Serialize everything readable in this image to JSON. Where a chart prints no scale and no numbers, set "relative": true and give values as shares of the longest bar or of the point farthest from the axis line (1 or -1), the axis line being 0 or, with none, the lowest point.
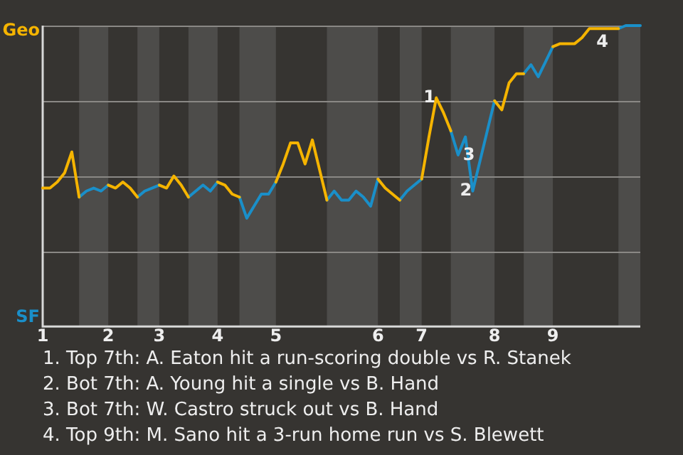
{
  "chart_data": {
    "type": "line",
    "relative": true,
    "categories": [
      "1",
      null,
      null,
      null,
      null,
      null,
      null,
      null,
      null,
      "2",
      null,
      null,
      null,
      null,
      null,
      null,
      "3",
      null,
      null,
      null,
      null,
      null,
      null,
      null,
      "4",
      null,
      null,
      null,
      null,
      null,
      null,
      null,
      "5",
      null,
      null,
      null,
      null,
      null,
      null,
      null,
      null,
      null,
      null,
      null,
      null,
      null,
      "6",
      null,
      null,
      null,
      null,
      null,
      "7",
      null,
      null,
      null,
      null,
      null,
      null,
      null,
      null,
      null,
      "8",
      null,
      null,
      null,
      null,
      null,
      null,
      null,
      "9",
      null,
      null,
      null,
      null,
      null,
      null,
      null,
      null,
      null,
      null,
      null,
      null
    ],
    "series": [
      {
        "name": "Geo",
        "color": "#f5b400",
        "values": [
          0.46,
          0.46,
          0.48,
          0.51,
          0.58,
          0.43,
          null,
          null,
          null,
          0.47,
          0.46,
          0.48,
          0.46,
          0.43,
          null,
          null,
          0.47,
          0.46,
          0.5,
          0.47,
          0.43,
          null,
          null,
          null,
          0.48,
          0.47,
          0.44,
          0.43,
          null,
          null,
          null,
          null,
          0.48,
          0.54,
          0.61,
          0.61,
          0.54,
          0.62,
          0.52,
          0.42,
          null,
          null,
          null,
          null,
          null,
          null,
          0.49,
          0.46,
          0.44,
          0.42,
          null,
          null,
          0.49,
          0.63,
          0.76,
          0.71,
          0.65,
          null,
          null,
          null,
          null,
          null,
          0.75,
          0.72,
          0.81,
          0.84,
          0.84,
          null,
          null,
          null,
          0.93,
          0.94,
          0.94,
          0.94,
          0.96,
          0.99,
          0.99,
          0.99,
          0.99,
          0.99,
          null,
          null,
          null
        ]
      },
      {
        "name": "SF",
        "color": "#1a8fc9",
        "values": [
          null,
          null,
          null,
          null,
          null,
          0.43,
          0.45,
          0.46,
          0.45,
          0.47,
          null,
          null,
          null,
          0.43,
          0.45,
          0.46,
          0.47,
          null,
          null,
          null,
          0.43,
          0.45,
          0.47,
          0.45,
          0.48,
          null,
          null,
          0.43,
          0.36,
          0.4,
          0.44,
          0.44,
          0.48,
          null,
          null,
          null,
          null,
          null,
          null,
          0.42,
          0.45,
          0.42,
          0.42,
          0.45,
          0.43,
          0.4,
          0.49,
          null,
          null,
          0.42,
          0.45,
          0.47,
          0.49,
          null,
          null,
          null,
          0.65,
          0.57,
          0.63,
          0.45,
          0.55,
          0.65,
          0.75,
          null,
          null,
          null,
          0.84,
          0.87,
          0.83,
          0.88,
          0.93,
          null,
          null,
          null,
          null,
          null,
          null,
          null,
          null,
          0.99,
          1,
          1,
          1
        ]
      }
    ],
    "grid": "y",
    "legend": "left",
    "marker": "none",
    "line_style": "solid",
    "annotations": [
      {
        "text": "1",
        "y": 0.76
      },
      {
        "text": "2",
        "y": 0.45
      },
      {
        "text": "3",
        "y": 0.55
      },
      {
        "text": "4",
        "y": 0.99
      },
      "1. Top 7th: A. Eaton hit a run-scoring double vs R. Stanek",
      "2. Bot 7th: A. Young hit a single vs B. Hand",
      "3. Bot 7th: W. Castro struck out vs B. Hand",
      "4. Top 9th: M. Sano hit a 3-run home run vs S. Blewett"
    ]
  }
}
